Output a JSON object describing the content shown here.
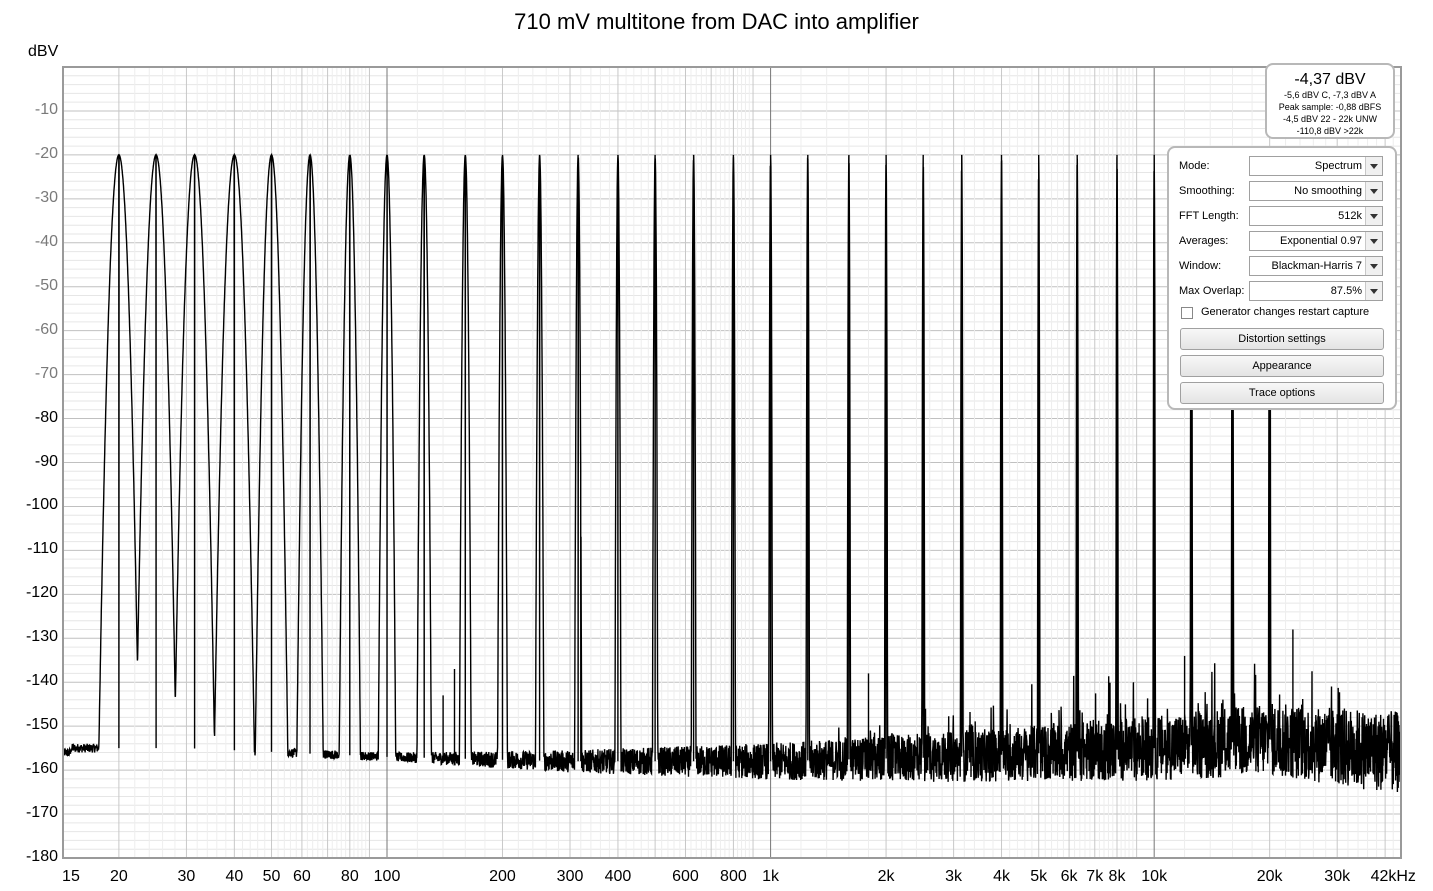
{
  "chart_data": {
    "type": "line",
    "title": "710 mV multitone from DAC into amplifier",
    "ylabel": "dBV",
    "xlabel": "",
    "x_scale": "log",
    "xlim": [
      14.3,
      44000
    ],
    "ylim": [
      -180,
      0
    ],
    "grid": true,
    "y_ticks": [
      "-10",
      "-20",
      "-30",
      "-40",
      "-50",
      "-60",
      "-70",
      "-80",
      "-90",
      "-100",
      "-110",
      "-120",
      "-130",
      "-140",
      "-150",
      "-160",
      "-170",
      "-180"
    ],
    "x_ticks": [
      {
        "label": "15",
        "value": 15
      },
      {
        "label": "20",
        "value": 20
      },
      {
        "label": "30",
        "value": 30
      },
      {
        "label": "40",
        "value": 40
      },
      {
        "label": "50",
        "value": 50
      },
      {
        "label": "60",
        "value": 60
      },
      {
        "label": "80",
        "value": 80
      },
      {
        "label": "100",
        "value": 100
      },
      {
        "label": "200",
        "value": 200
      },
      {
        "label": "300",
        "value": 300
      },
      {
        "label": "400",
        "value": 400
      },
      {
        "label": "600",
        "value": 600
      },
      {
        "label": "800",
        "value": 800
      },
      {
        "label": "1k",
        "value": 1000
      },
      {
        "label": "2k",
        "value": 2000
      },
      {
        "label": "3k",
        "value": 3000
      },
      {
        "label": "4k",
        "value": 4000
      },
      {
        "label": "5k",
        "value": 5000
      },
      {
        "label": "6k",
        "value": 6000
      },
      {
        "label": "7k",
        "value": 7000
      },
      {
        "label": "8k",
        "value": 8000
      },
      {
        "label": "10k",
        "value": 10000
      },
      {
        "label": "20k",
        "value": 20000
      },
      {
        "label": "30k",
        "value": 30000
      },
      {
        "label": "42kHz",
        "value": 42000
      }
    ],
    "series": [
      {
        "tone_level_dbv": -20,
        "tone_frequencies": [
          20.0,
          25.0,
          31.5,
          40.0,
          50.0,
          63.0,
          80.0,
          100.0,
          125.0,
          160.0,
          200.0,
          250.0,
          315.0,
          400.0,
          500.0,
          630.0,
          800.0,
          1000.0,
          1250.0,
          1600.0,
          2000.0,
          2500.0,
          3150.0,
          4000.0,
          5000.0,
          6300.0,
          8000.0,
          10000.0,
          12500.0,
          16000.0,
          20000.0
        ],
        "noise_floor": [
          {
            "x": 15,
            "y": -155
          },
          {
            "x": 30,
            "y": -155
          },
          {
            "x": 100,
            "y": -157
          },
          {
            "x": 300,
            "y": -158
          },
          {
            "x": 1000,
            "y": -158
          },
          {
            "x": 3000,
            "y": -157
          },
          {
            "x": 10000,
            "y": -155
          },
          {
            "x": 20000,
            "y": -153
          },
          {
            "x": 42000,
            "y": -156
          }
        ],
        "noise_peaks": [
          {
            "x": 20000,
            "y": -126
          },
          {
            "x": 23000,
            "y": -128
          },
          {
            "x": 12000,
            "y": -134
          },
          {
            "x": 8000,
            "y": -135
          },
          {
            "x": 150,
            "y": -137
          },
          {
            "x": 140,
            "y": -143
          },
          {
            "x": 320,
            "y": -138
          },
          {
            "x": 1800,
            "y": -138
          }
        ]
      }
    ]
  },
  "readout": {
    "main": "-4,37 dBV",
    "lines": [
      "-5,6 dBV C, -7,3 dBV A",
      "Peak sample: -0,88 dBFS",
      "-4,5 dBV 22 - 22k UNW",
      "-110,8 dBV >22k"
    ]
  },
  "panel": {
    "rows": [
      {
        "label": "Mode:",
        "value": "Spectrum"
      },
      {
        "label": "Smoothing:",
        "value": "No  smoothing"
      },
      {
        "label": "FFT Length:",
        "value": "512k"
      },
      {
        "label": "Averages:",
        "value": "Exponential 0.97"
      },
      {
        "label": "Window:",
        "value": "Blackman-Harris 7"
      },
      {
        "label": "Max Overlap:",
        "value": "87.5%"
      }
    ],
    "checkbox_label": "Generator changes restart capture",
    "checkbox_checked": false,
    "buttons": [
      "Distortion settings",
      "Appearance",
      "Trace options"
    ]
  }
}
